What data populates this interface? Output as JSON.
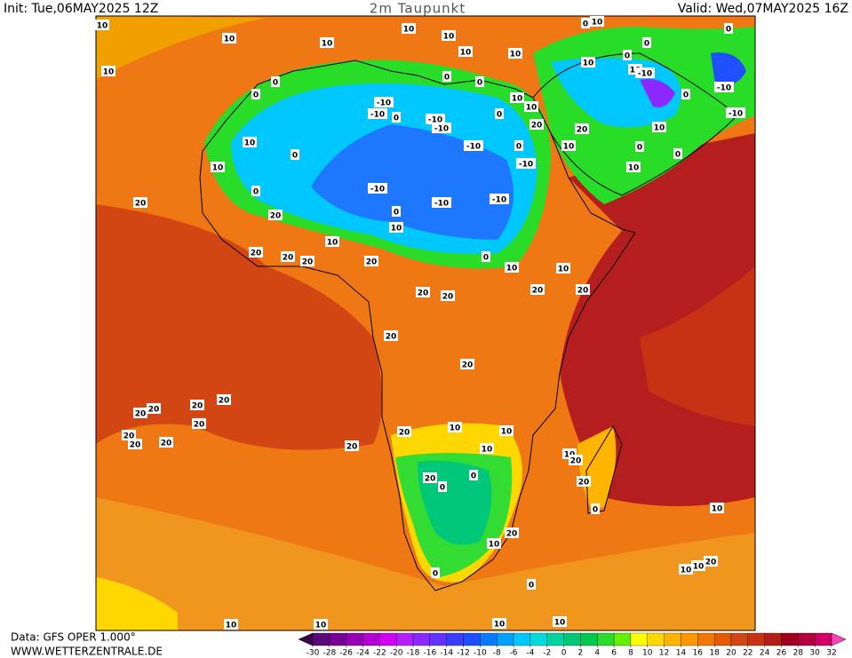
{
  "header": {
    "init": "Init: Tue,06MAY2025 12Z",
    "title": "2m Taupunkt",
    "valid": "Valid: Wed,07MAY2025 16Z"
  },
  "footer": {
    "data": "Data: GFS OPER 1.000°",
    "site": "WWW.WETTERZENTRALE.DE"
  },
  "legend": {
    "ticks": [
      -30,
      -28,
      -26,
      -24,
      -22,
      -20,
      -18,
      -16,
      -14,
      -12,
      -10,
      -8,
      -6,
      -4,
      -2,
      0,
      2,
      4,
      6,
      8,
      10,
      12,
      14,
      16,
      18,
      20,
      22,
      24,
      26,
      28,
      30,
      32
    ],
    "colors": [
      "#3c0050",
      "#5a0a78",
      "#780096",
      "#9600b4",
      "#b400d2",
      "#d200f0",
      "#b41eff",
      "#8c28ff",
      "#6432ff",
      "#3c3cff",
      "#1e50ff",
      "#0a78ff",
      "#00a0ff",
      "#00c8ff",
      "#00dcdc",
      "#00d2a0",
      "#00c878",
      "#00c850",
      "#28dc28",
      "#64f000",
      "#ffff00",
      "#ffd700",
      "#ffb400",
      "#ff9600",
      "#f07800",
      "#e65a00",
      "#d24614",
      "#c83214",
      "#b41e14",
      "#a0001e",
      "#b4003c",
      "#d20064",
      "#ff40c0"
    ]
  },
  "contour_labels": [
    10,
    10,
    10,
    10,
    10,
    10,
    10,
    10,
    0,
    0,
    0,
    0,
    -10,
    -10,
    0,
    -10,
    -10,
    0,
    10,
    10,
    20,
    -10,
    0,
    -10,
    10,
    10,
    10,
    0,
    -10,
    0,
    -10,
    -10,
    0,
    10,
    20,
    20,
    10,
    20,
    20,
    20,
    20,
    0,
    10,
    10,
    20,
    20,
    20,
    20,
    20,
    20,
    20,
    20,
    20,
    20,
    20,
    20,
    20,
    20,
    20,
    20,
    10,
    10,
    10,
    10,
    20,
    20,
    20,
    0,
    0,
    0,
    10,
    20,
    10,
    0,
    0,
    20,
    10,
    10,
    10,
    10,
    10,
    10,
    0,
    0,
    10,
    -10,
    0,
    -10,
    -10,
    10,
    20,
    0,
    10,
    0,
    0,
    0,
    10,
    10
  ]
}
